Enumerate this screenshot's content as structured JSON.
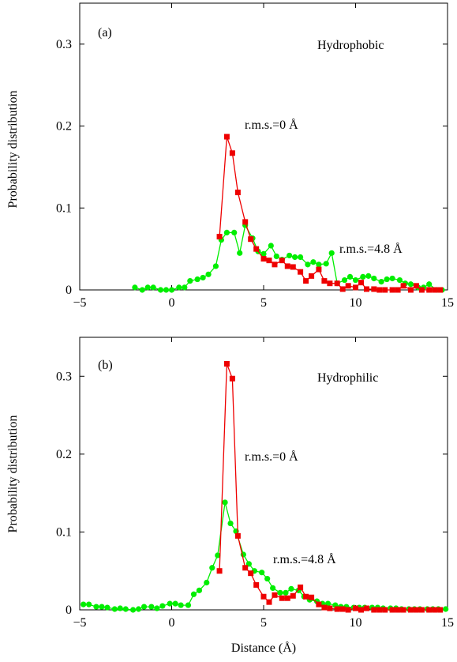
{
  "colors": {
    "series_red": "#ee0000",
    "series_green": "#00ee00",
    "axis": "#000000"
  },
  "shared": {
    "xlabel": "Distance (Å)"
  },
  "chart_data": [
    {
      "type": "line",
      "panel_label": "(a)",
      "title": "Hydrophobic",
      "ylabel": "Probability distribution",
      "xlabel": "",
      "xlim": [
        -5,
        15
      ],
      "ylim": [
        0,
        0.35
      ],
      "x_ticks": [
        -5,
        0,
        5,
        10,
        15
      ],
      "x_tick_labels": [
        "−5",
        "0",
        "5",
        "10",
        "15"
      ],
      "y_ticks": [
        0,
        0.1,
        0.2,
        0.3
      ],
      "y_tick_labels": [
        "0",
        "0.1",
        "0.2",
        "0.3"
      ],
      "grid": false,
      "series": [
        {
          "color": "#ee0000",
          "marker": "square",
          "annotation": "r.m.s.=0 Å",
          "x": [
            2.6,
            3.0,
            3.3,
            3.6,
            4.0,
            4.3,
            4.6,
            5.0,
            5.3,
            5.6,
            6.0,
            6.3,
            6.6,
            7.0,
            7.3,
            7.6,
            8.0,
            8.3,
            8.6,
            9.0,
            9.3,
            9.6,
            10.0,
            10.3,
            10.6,
            11.0,
            11.3,
            11.6,
            12.0,
            12.3,
            12.6,
            13.0,
            13.3,
            13.6,
            14.0,
            14.3,
            14.6
          ],
          "y": [
            0.065,
            0.187,
            0.167,
            0.119,
            0.083,
            0.062,
            0.05,
            0.038,
            0.036,
            0.031,
            0.036,
            0.029,
            0.028,
            0.022,
            0.011,
            0.017,
            0.025,
            0.011,
            0.008,
            0.008,
            0.001,
            0.005,
            0.003,
            0.009,
            0.001,
            0.001,
            0.0,
            0.0,
            0.0,
            0.0,
            0.005,
            0.0,
            0.005,
            0.0,
            0.0,
            0.0,
            0.0
          ]
        },
        {
          "color": "#00ee00",
          "marker": "circle",
          "annotation": "r.m.s.=4.8 Å",
          "x": [
            -2.0,
            -1.6,
            -1.3,
            -1.0,
            -0.6,
            -0.3,
            0.0,
            0.4,
            0.7,
            1.0,
            1.4,
            1.7,
            2.0,
            2.4,
            2.7,
            3.0,
            3.4,
            3.7,
            4.0,
            4.4,
            4.7,
            5.0,
            5.4,
            5.7,
            6.0,
            6.4,
            6.7,
            7.0,
            7.4,
            7.7,
            8.0,
            8.4,
            8.7,
            9.0,
            9.4,
            9.7,
            10.0,
            10.4,
            10.7,
            11.0,
            11.4,
            11.7,
            12.0,
            12.4,
            12.7,
            13.0,
            13.4,
            13.7,
            14.0,
            14.4,
            14.7
          ],
          "y": [
            0.003,
            0.0,
            0.003,
            0.003,
            0.0,
            0.0,
            0.0,
            0.003,
            0.003,
            0.011,
            0.013,
            0.015,
            0.019,
            0.029,
            0.061,
            0.07,
            0.07,
            0.045,
            0.079,
            0.063,
            0.047,
            0.044,
            0.054,
            0.041,
            0.037,
            0.042,
            0.04,
            0.04,
            0.031,
            0.034,
            0.031,
            0.032,
            0.045,
            0.008,
            0.012,
            0.016,
            0.012,
            0.016,
            0.017,
            0.014,
            0.01,
            0.013,
            0.014,
            0.012,
            0.008,
            0.007,
            0.003,
            0.003,
            0.007,
            0.0,
            0.0
          ]
        }
      ]
    },
    {
      "type": "line",
      "panel_label": "(b)",
      "title": "Hydrophilic",
      "ylabel": "Probability distribution",
      "xlabel": "Distance (Å)",
      "xlim": [
        -5,
        15
      ],
      "ylim": [
        0,
        0.35
      ],
      "x_ticks": [
        -5,
        0,
        5,
        10,
        15
      ],
      "x_tick_labels": [
        "−5",
        "0",
        "5",
        "10",
        "15"
      ],
      "y_ticks": [
        0,
        0.1,
        0.2,
        0.3
      ],
      "y_tick_labels": [
        "0",
        "0.1",
        "0.2",
        "0.3"
      ],
      "grid": false,
      "series": [
        {
          "color": "#ee0000",
          "marker": "square",
          "annotation": "r.m.s.=0 Å",
          "x": [
            2.6,
            3.0,
            3.3,
            3.6,
            4.0,
            4.3,
            4.6,
            5.0,
            5.3,
            5.6,
            6.0,
            6.3,
            6.6,
            7.0,
            7.3,
            7.6,
            8.0,
            8.3,
            8.6,
            9.0,
            9.3,
            9.6,
            10.0,
            10.3,
            10.6,
            11.0,
            11.3,
            11.6,
            12.0,
            12.3,
            12.6,
            13.0,
            13.3,
            13.6,
            14.0,
            14.3,
            14.6
          ],
          "y": [
            0.05,
            0.316,
            0.297,
            0.095,
            0.054,
            0.047,
            0.032,
            0.017,
            0.01,
            0.019,
            0.015,
            0.015,
            0.018,
            0.029,
            0.017,
            0.016,
            0.007,
            0.003,
            0.002,
            0.001,
            0.001,
            0.0,
            0.002,
            0.0,
            0.002,
            0.0,
            0.0,
            0.0,
            0.0,
            0.0,
            0.0,
            0.0,
            0.0,
            0.0,
            0.0,
            0.0,
            0.0
          ]
        },
        {
          "color": "#00ee00",
          "marker": "circle",
          "annotation": "r.m.s.=4.8 Å",
          "x": [
            -4.8,
            -4.5,
            -4.1,
            -3.8,
            -3.5,
            -3.1,
            -2.8,
            -2.5,
            -2.1,
            -1.8,
            -1.5,
            -1.1,
            -0.8,
            -0.5,
            -0.1,
            0.2,
            0.5,
            0.9,
            1.2,
            1.5,
            1.9,
            2.2,
            2.5,
            2.9,
            3.2,
            3.5,
            3.9,
            4.2,
            4.5,
            4.9,
            5.2,
            5.5,
            5.9,
            6.2,
            6.5,
            6.9,
            7.2,
            7.5,
            7.9,
            8.2,
            8.5,
            8.9,
            9.2,
            9.5,
            9.9,
            10.2,
            10.5,
            10.9,
            11.2,
            11.5,
            11.9,
            12.2,
            12.5,
            12.9,
            13.2,
            13.5,
            13.9,
            14.2,
            14.5,
            14.9
          ],
          "y": [
            0.007,
            0.007,
            0.004,
            0.004,
            0.003,
            0.001,
            0.002,
            0.001,
            0.0,
            0.001,
            0.004,
            0.004,
            0.002,
            0.005,
            0.008,
            0.008,
            0.006,
            0.006,
            0.02,
            0.025,
            0.035,
            0.054,
            0.07,
            0.138,
            0.111,
            0.101,
            0.071,
            0.059,
            0.05,
            0.048,
            0.04,
            0.028,
            0.022,
            0.022,
            0.027,
            0.025,
            0.017,
            0.013,
            0.011,
            0.008,
            0.008,
            0.006,
            0.004,
            0.004,
            0.003,
            0.003,
            0.003,
            0.003,
            0.003,
            0.002,
            0.002,
            0.002,
            0.001,
            0.001,
            0.001,
            0.001,
            0.001,
            0.001,
            0.001,
            0.001
          ]
        }
      ]
    }
  ]
}
